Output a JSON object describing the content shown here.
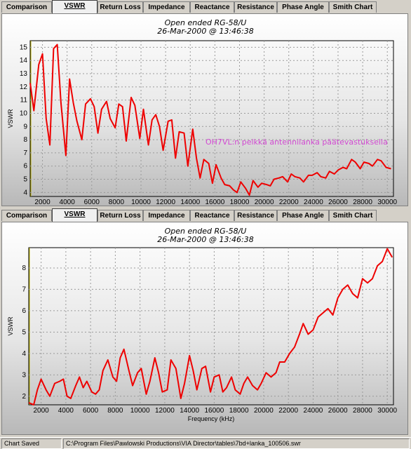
{
  "tabs": [
    "Comparison",
    "VSWR",
    "Return Loss",
    "Impedance",
    "Reactance",
    "Resistance",
    "Phase Angle",
    "Smith Chart"
  ],
  "active_tab": "VSWR",
  "status": {
    "message": "Chart Saved",
    "path": "C:\\Program Files\\Pawlowski Productions\\VIA Director\\tables\\7bd+lanka_100506.swr"
  },
  "chart_data": [
    {
      "type": "line",
      "title": "Open ended RG-58/U",
      "subtitle": "26-Mar-2000 @ 13:46:38",
      "xlabel": "",
      "ylabel": "VSWR",
      "annotation": "OH7VL:n pelkkä antennilanka päätevastuksella",
      "xlim": [
        1000,
        30500
      ],
      "ylim": [
        3.7,
        15.5
      ],
      "xticks": [
        2000,
        4000,
        6000,
        8000,
        10000,
        12000,
        14000,
        16000,
        18000,
        20000,
        22000,
        24000,
        26000,
        28000,
        30000
      ],
      "yticks": [
        4,
        5,
        6,
        7,
        8,
        9,
        10,
        11,
        12,
        13,
        14,
        15
      ],
      "grid": true,
      "series": [
        {
          "color": "#ee0000",
          "x": [
            1000,
            1300,
            1700,
            2000,
            2300,
            2600,
            2900,
            3200,
            3500,
            3900,
            4200,
            4500,
            4800,
            5200,
            5500,
            5900,
            6200,
            6500,
            6800,
            7200,
            7500,
            7900,
            8200,
            8500,
            8800,
            9200,
            9500,
            9900,
            10200,
            10600,
            10900,
            11200,
            11500,
            11800,
            12200,
            12500,
            12800,
            13100,
            13500,
            13800,
            14200,
            14500,
            14800,
            15100,
            15500,
            15800,
            16100,
            16500,
            16800,
            17200,
            17500,
            17800,
            18100,
            18500,
            18800,
            19100,
            19500,
            19800,
            20200,
            20500,
            20800,
            21200,
            21500,
            21900,
            22200,
            22500,
            22900,
            23200,
            23600,
            23900,
            24300,
            24600,
            25000,
            25300,
            25700,
            26000,
            26400,
            26700,
            27100,
            27400,
            27800,
            28100,
            28500,
            28800,
            29200,
            29500,
            29900,
            30300
          ],
          "values": [
            12.3,
            10.2,
            13.7,
            14.5,
            9.6,
            7.6,
            14.9,
            15.2,
            10.8,
            6.8,
            12.6,
            10.8,
            9.4,
            8.0,
            10.7,
            11.1,
            10.5,
            8.5,
            10.3,
            10.9,
            9.6,
            8.9,
            10.7,
            10.5,
            7.9,
            11.2,
            10.6,
            8.1,
            10.3,
            7.6,
            9.5,
            9.9,
            9.0,
            7.2,
            9.4,
            9.5,
            6.6,
            8.6,
            8.5,
            6.0,
            8.8,
            6.6,
            5.1,
            6.5,
            6.2,
            4.7,
            6.1,
            5.1,
            4.6,
            4.5,
            4.2,
            4.0,
            4.8,
            4.3,
            3.8,
            4.9,
            4.4,
            4.7,
            4.6,
            4.5,
            5.0,
            5.1,
            5.2,
            4.8,
            5.4,
            5.2,
            5.1,
            4.8,
            5.3,
            5.3,
            5.5,
            5.2,
            5.1,
            5.6,
            5.4,
            5.7,
            5.9,
            5.8,
            6.5,
            6.3,
            5.8,
            6.3,
            6.2,
            6.0,
            6.5,
            6.4,
            5.9,
            5.8
          ]
        }
      ]
    },
    {
      "type": "line",
      "title": "Open ended RG-58/U",
      "subtitle": "26-Mar-2000 @ 13:46:38",
      "xlabel": "Frequency (kHz)",
      "ylabel": "VSWR",
      "xlim": [
        1000,
        30500
      ],
      "ylim": [
        1.6,
        8.95
      ],
      "xticks": [
        2000,
        4000,
        6000,
        8000,
        10000,
        12000,
        14000,
        16000,
        18000,
        20000,
        22000,
        24000,
        26000,
        28000,
        30000
      ],
      "yticks": [
        2,
        3,
        4,
        5,
        6,
        7,
        8
      ],
      "grid": true,
      "series": [
        {
          "color": "#ee0000",
          "x": [
            1000,
            1400,
            1700,
            2000,
            2400,
            2700,
            3100,
            3500,
            3800,
            4100,
            4400,
            4800,
            5100,
            5400,
            5700,
            6100,
            6400,
            6700,
            7000,
            7400,
            7800,
            8100,
            8400,
            8700,
            9100,
            9400,
            9800,
            10100,
            10500,
            10800,
            11200,
            11500,
            11800,
            12200,
            12500,
            12900,
            13300,
            13600,
            14000,
            14300,
            14600,
            15000,
            15300,
            15700,
            16000,
            16400,
            16700,
            17000,
            17400,
            17700,
            18100,
            18400,
            18700,
            19100,
            19500,
            19800,
            20200,
            20600,
            21000,
            21300,
            21700,
            22100,
            22500,
            22900,
            23200,
            23600,
            24000,
            24400,
            24800,
            25200,
            25600,
            26000,
            26400,
            26800,
            27200,
            27600,
            28000,
            28400,
            28800,
            29200,
            29600,
            30000,
            30400
          ],
          "values": [
            1.7,
            1.6,
            2.3,
            2.8,
            2.3,
            2.0,
            2.6,
            2.7,
            2.8,
            2.0,
            1.9,
            2.5,
            2.9,
            2.4,
            2.7,
            2.2,
            2.1,
            2.3,
            3.2,
            3.7,
            2.9,
            2.7,
            3.8,
            4.2,
            3.2,
            2.5,
            3.1,
            3.3,
            2.1,
            2.7,
            3.8,
            3.1,
            2.2,
            2.3,
            3.7,
            3.3,
            1.9,
            2.6,
            3.9,
            3.2,
            2.3,
            3.3,
            3.4,
            2.2,
            2.9,
            3.0,
            2.2,
            2.4,
            2.9,
            2.3,
            2.1,
            2.6,
            2.9,
            2.5,
            2.3,
            2.6,
            3.1,
            2.9,
            3.1,
            3.6,
            3.6,
            4.0,
            4.3,
            4.9,
            5.4,
            4.9,
            5.1,
            5.7,
            5.9,
            6.1,
            5.8,
            6.6,
            7.0,
            7.2,
            6.8,
            6.6,
            7.5,
            7.3,
            7.5,
            8.1,
            8.3,
            8.9,
            8.5
          ]
        }
      ]
    }
  ]
}
